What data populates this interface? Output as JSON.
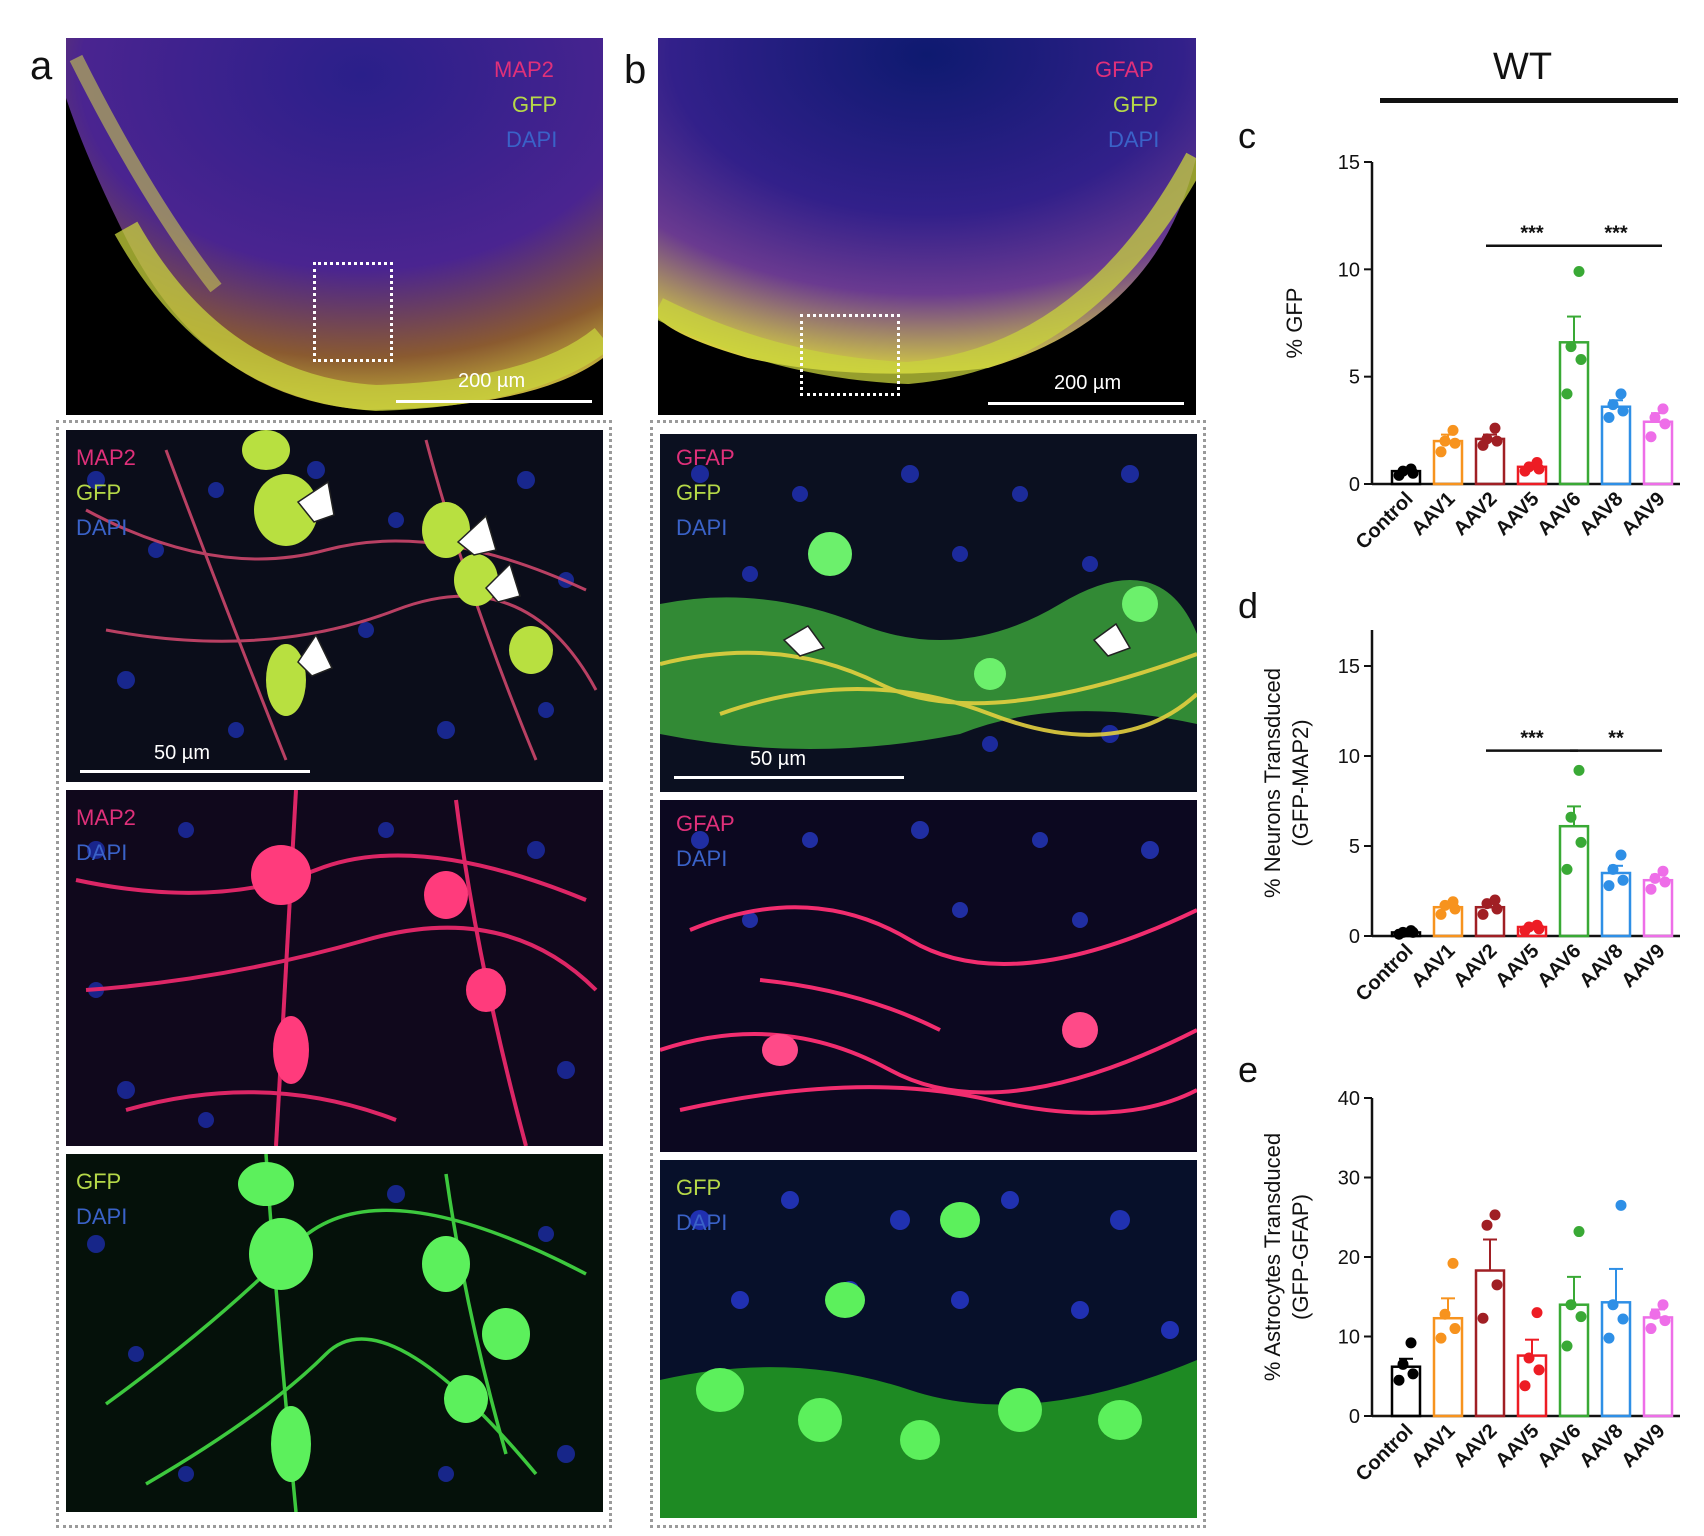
{
  "panels": {
    "a": {
      "label": "a",
      "overview": {
        "channels": [
          "MAP2",
          "GFP",
          "DAPI"
        ],
        "scale": "200 µm"
      },
      "merge": {
        "channels": [
          "MAP2",
          "GFP",
          "DAPI"
        ],
        "scale": "50 µm"
      },
      "single1": {
        "channels": [
          "MAP2",
          "DAPI"
        ]
      },
      "single2": {
        "channels": [
          "GFP",
          "DAPI"
        ]
      }
    },
    "b": {
      "label": "b",
      "overview": {
        "channels": [
          "GFAP",
          "GFP",
          "DAPI"
        ],
        "scale": "200 µm"
      },
      "merge": {
        "channels": [
          "GFAP",
          "GFP",
          "DAPI"
        ],
        "scale": "50 µm"
      },
      "single1": {
        "channels": [
          "GFAP",
          "DAPI"
        ]
      },
      "single2": {
        "channels": [
          "GFP",
          "DAPI"
        ]
      }
    }
  },
  "group_label": "WT",
  "chart_data": [
    {
      "panel": "c",
      "type": "bar",
      "ylabel": "% GFP",
      "ylim": [
        0,
        15
      ],
      "yticks": [
        0,
        5,
        10,
        15
      ],
      "categories": [
        "Control",
        "AAV1",
        "AAV2",
        "AAV5",
        "AAV6",
        "AAV8",
        "AAV9"
      ],
      "colors": [
        "#000000",
        "#f7931e",
        "#a01f24",
        "#ed1c24",
        "#39a935",
        "#2e8fe6",
        "#ee6ee8"
      ],
      "means": [
        0.6,
        2.0,
        2.1,
        0.8,
        6.6,
        3.6,
        2.9
      ],
      "sem": [
        0.1,
        0.3,
        0.2,
        0.1,
        1.2,
        0.3,
        0.4
      ],
      "points": [
        [
          0.4,
          0.5,
          0.6,
          0.7
        ],
        [
          1.5,
          1.9,
          2.0,
          2.5
        ],
        [
          1.8,
          2.0,
          2.1,
          2.6
        ],
        [
          0.6,
          0.7,
          0.8,
          1.0
        ],
        [
          4.2,
          5.8,
          6.4,
          9.9
        ],
        [
          3.1,
          3.4,
          3.7,
          4.2
        ],
        [
          2.2,
          2.8,
          3.1,
          3.5
        ]
      ],
      "sig": [
        {
          "from": 2,
          "to": 4,
          "label": "***",
          "y": 11.1
        },
        {
          "from": 4,
          "to": 6,
          "label": "***",
          "y": 11.1
        }
      ]
    },
    {
      "panel": "d",
      "type": "bar",
      "ylabel": "% Neurons Transduced (GFP-MAP2)",
      "ylabel_lines": [
        "% Neurons Transduced",
        "(GFP-MAP2)"
      ],
      "ylim": [
        0,
        17
      ],
      "yticks": [
        0,
        5,
        10,
        15
      ],
      "categories": [
        "Control",
        "AAV1",
        "AAV2",
        "AAV5",
        "AAV6",
        "AAV8",
        "AAV9"
      ],
      "colors": [
        "#000000",
        "#f7931e",
        "#a01f24",
        "#ed1c24",
        "#39a935",
        "#2e8fe6",
        "#ee6ee8"
      ],
      "means": [
        0.2,
        1.6,
        1.6,
        0.5,
        6.1,
        3.5,
        3.1
      ],
      "sem": [
        0.05,
        0.2,
        0.2,
        0.1,
        1.1,
        0.4,
        0.3
      ],
      "points": [
        [
          0.1,
          0.2,
          0.2,
          0.3
        ],
        [
          1.2,
          1.5,
          1.7,
          1.9
        ],
        [
          1.2,
          1.5,
          1.8,
          2.0
        ],
        [
          0.3,
          0.4,
          0.5,
          0.6
        ],
        [
          3.7,
          5.2,
          6.6,
          9.2
        ],
        [
          2.8,
          3.1,
          3.7,
          4.5
        ],
        [
          2.6,
          3.0,
          3.2,
          3.6
        ]
      ],
      "sig": [
        {
          "from": 2,
          "to": 4,
          "label": "***",
          "y": 10.3
        },
        {
          "from": 4,
          "to": 6,
          "label": "**",
          "y": 10.3
        }
      ]
    },
    {
      "panel": "e",
      "type": "bar",
      "ylabel": "% Astrocytes Transduced (GFP-GFAP)",
      "ylabel_lines": [
        "% Astrocytes Transduced",
        "(GFP-GFAP)"
      ],
      "ylim": [
        0,
        40
      ],
      "yticks": [
        0,
        10,
        20,
        30,
        40
      ],
      "categories": [
        "Control",
        "AAV1",
        "AAV2",
        "AAV5",
        "AAV6",
        "AAV8",
        "AAV9"
      ],
      "colors": [
        "#000000",
        "#f7931e",
        "#a01f24",
        "#ed1c24",
        "#39a935",
        "#2e8fe6",
        "#ee6ee8"
      ],
      "means": [
        6.2,
        12.3,
        18.3,
        7.6,
        14.0,
        14.3,
        12.4
      ],
      "sem": [
        1.0,
        2.5,
        3.9,
        2.0,
        3.5,
        4.2,
        1.0
      ],
      "points": [
        [
          4.5,
          5.3,
          6.5,
          9.2
        ],
        [
          9.8,
          11.0,
          12.8,
          19.2
        ],
        [
          12.3,
          16.5,
          24.0,
          25.3
        ],
        [
          3.8,
          5.8,
          7.3,
          13.0
        ],
        [
          8.8,
          12.5,
          14.0,
          23.2
        ],
        [
          9.8,
          12.2,
          14.0,
          26.5
        ],
        [
          11.0,
          12.0,
          12.8,
          14.0
        ]
      ],
      "sig": []
    }
  ]
}
